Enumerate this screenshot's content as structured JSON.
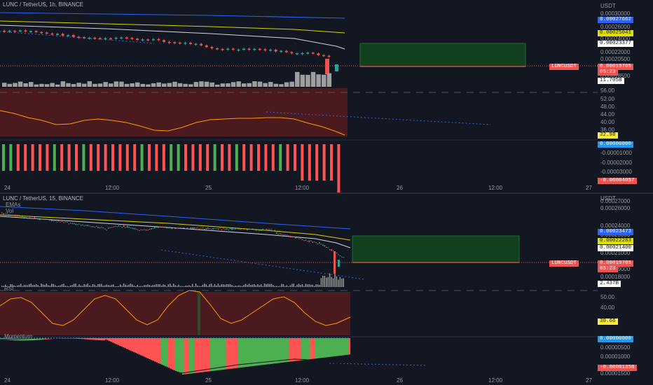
{
  "top": {
    "title": "LUNC / TetherUS, 1h, BINANCE",
    "currency": "USDT",
    "price_axis": [
      "0.00030000",
      "0.00026000",
      "0.00024000",
      "0.00022000",
      "0.00020500",
      "0.00018500"
    ],
    "rsi_axis": [
      "56.00",
      "52.00",
      "48.00",
      "44.00",
      "40.00",
      "36.00"
    ],
    "mom_axis": [
      "-0.00001000",
      "-0.00002000",
      "-0.00003000"
    ],
    "tags": {
      "ema_blue": "0.00027662",
      "ema_yellow": "0.00025041",
      "ema_white": "0.00023377",
      "symbol": "LUNCUSDT",
      "price": "0.00019705",
      "countdown": "05:23",
      "volume": "11.705B",
      "rsi": "32.98",
      "mom_zero": "0.00000000",
      "mom": "-0.00004057"
    },
    "time_axis": [
      "24",
      "12:00",
      "25",
      "12:00",
      "26",
      "12:00",
      "27"
    ]
  },
  "bottom": {
    "title": "LUNC / TetherUS, 15, BINANCE",
    "sub1": "EMAs",
    "sub2": "Vol",
    "currency": "USDT",
    "price_axis": [
      "0.00027000",
      "0.00026000",
      "0.00024000",
      "0.00023000",
      "0.00021000",
      "0.00019000",
      "0.00018000"
    ],
    "rsi_label": "RSI",
    "rsi_axis": [
      "50.00",
      "40.00"
    ],
    "mom_label": "Momentum",
    "tags": {
      "ema_blue": "0.00023473",
      "ema_yellow": "0.00022283",
      "ema_white": "0.00021400",
      "symbol": "LUNCUSDT",
      "price": "0.00019705",
      "countdown": "05:23",
      "volume": "2.437B",
      "rsi": "30.66",
      "mom_zero": "0.00000000",
      "mom": "-0.00001358"
    },
    "mom_axis": [
      "0.00000500",
      "0.00001000",
      "0.00001500"
    ],
    "time_axis": [
      "24",
      "12:00",
      "25",
      "12:00",
      "26",
      "12:00",
      "27"
    ]
  },
  "colors": {
    "bg": "#131722",
    "up": "#26a69a",
    "down": "#ef5350",
    "ema_blue": "#2962ff",
    "ema_yellow": "#d4d400",
    "ema_white": "#d1d4dc",
    "rsi_line": "#ff9800",
    "mom_up": "#4caf50",
    "mom_down": "#ff5252"
  }
}
